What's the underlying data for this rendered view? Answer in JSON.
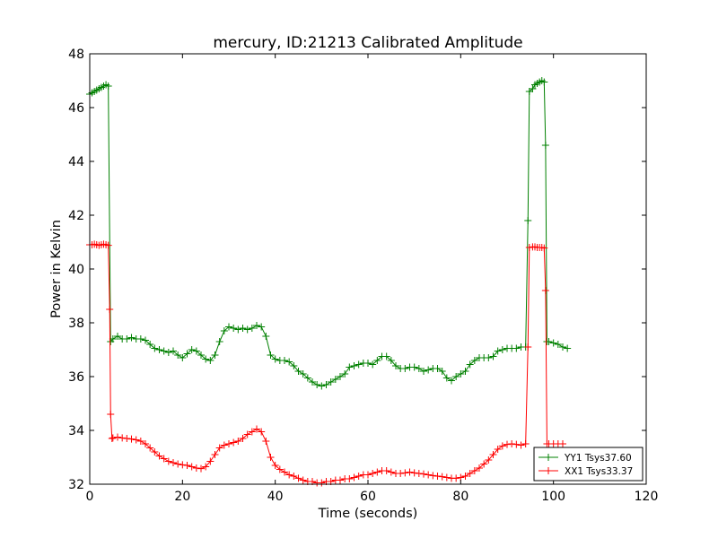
{
  "chart_data": {
    "type": "line",
    "title": "mercury, ID:21213 Calibrated Amplitude",
    "xlabel": "Time (seconds)",
    "ylabel": "Power in Kelvin",
    "xlim": [
      0,
      120
    ],
    "ylim": [
      32,
      48
    ],
    "xticks": [
      0,
      20,
      40,
      60,
      80,
      100,
      120
    ],
    "yticks": [
      32,
      34,
      36,
      38,
      40,
      42,
      44,
      46,
      48
    ],
    "grid": false,
    "marker": "plus",
    "legend_position": "lower-right",
    "series": [
      {
        "name": "YY1 Tsys37.60",
        "color": "#008000",
        "points": [
          [
            0,
            46.5
          ],
          [
            0.5,
            46.55
          ],
          [
            1,
            46.6
          ],
          [
            1.5,
            46.65
          ],
          [
            2,
            46.7
          ],
          [
            2.5,
            46.75
          ],
          [
            3,
            46.8
          ],
          [
            3.5,
            46.85
          ],
          [
            4,
            46.8
          ],
          [
            4.5,
            37.3
          ],
          [
            5,
            37.4
          ],
          [
            6,
            37.5
          ],
          [
            7,
            37.4
          ],
          [
            8,
            37.4
          ],
          [
            9,
            37.45
          ],
          [
            10,
            37.4
          ],
          [
            11,
            37.4
          ],
          [
            12,
            37.35
          ],
          [
            13,
            37.2
          ],
          [
            14,
            37.05
          ],
          [
            15,
            37.0
          ],
          [
            16,
            36.95
          ],
          [
            17,
            36.9
          ],
          [
            18,
            36.95
          ],
          [
            19,
            36.8
          ],
          [
            20,
            36.7
          ],
          [
            21,
            36.85
          ],
          [
            22,
            37.0
          ],
          [
            23,
            36.95
          ],
          [
            24,
            36.8
          ],
          [
            25,
            36.65
          ],
          [
            26,
            36.6
          ],
          [
            27,
            36.8
          ],
          [
            28,
            37.3
          ],
          [
            29,
            37.7
          ],
          [
            30,
            37.85
          ],
          [
            31,
            37.8
          ],
          [
            32,
            37.75
          ],
          [
            33,
            37.8
          ],
          [
            34,
            37.75
          ],
          [
            35,
            37.8
          ],
          [
            36,
            37.9
          ],
          [
            37,
            37.85
          ],
          [
            38,
            37.5
          ],
          [
            39,
            36.8
          ],
          [
            40,
            36.65
          ],
          [
            41,
            36.6
          ],
          [
            42,
            36.6
          ],
          [
            43,
            36.55
          ],
          [
            44,
            36.4
          ],
          [
            45,
            36.2
          ],
          [
            46,
            36.1
          ],
          [
            47,
            35.95
          ],
          [
            48,
            35.8
          ],
          [
            49,
            35.7
          ],
          [
            50,
            35.65
          ],
          [
            51,
            35.7
          ],
          [
            52,
            35.8
          ],
          [
            53,
            35.9
          ],
          [
            54,
            36.0
          ],
          [
            55,
            36.1
          ],
          [
            56,
            36.35
          ],
          [
            57,
            36.4
          ],
          [
            58,
            36.45
          ],
          [
            59,
            36.5
          ],
          [
            60,
            36.5
          ],
          [
            61,
            36.45
          ],
          [
            62,
            36.6
          ],
          [
            63,
            36.75
          ],
          [
            64,
            36.75
          ],
          [
            65,
            36.6
          ],
          [
            66,
            36.4
          ],
          [
            67,
            36.3
          ],
          [
            68,
            36.3
          ],
          [
            69,
            36.35
          ],
          [
            70,
            36.35
          ],
          [
            71,
            36.3
          ],
          [
            72,
            36.2
          ],
          [
            73,
            36.25
          ],
          [
            74,
            36.3
          ],
          [
            75,
            36.3
          ],
          [
            76,
            36.2
          ],
          [
            77,
            35.95
          ],
          [
            78,
            35.85
          ],
          [
            79,
            36.0
          ],
          [
            80,
            36.1
          ],
          [
            81,
            36.2
          ],
          [
            82,
            36.45
          ],
          [
            83,
            36.6
          ],
          [
            84,
            36.7
          ],
          [
            85,
            36.7
          ],
          [
            86,
            36.7
          ],
          [
            87,
            36.75
          ],
          [
            88,
            36.95
          ],
          [
            89,
            37.0
          ],
          [
            90,
            37.05
          ],
          [
            91,
            37.05
          ],
          [
            92,
            37.05
          ],
          [
            93,
            37.1
          ],
          [
            94,
            37.1
          ],
          [
            94.5,
            41.8
          ],
          [
            94.8,
            46.6
          ],
          [
            95.5,
            46.7
          ],
          [
            96,
            46.85
          ],
          [
            96.5,
            46.9
          ],
          [
            97,
            46.95
          ],
          [
            97.5,
            47.0
          ],
          [
            98,
            46.95
          ],
          [
            98.3,
            44.6
          ],
          [
            98.6,
            37.3
          ],
          [
            99,
            37.3
          ],
          [
            100,
            37.25
          ],
          [
            101,
            37.2
          ],
          [
            102,
            37.1
          ],
          [
            103,
            37.05
          ]
        ]
      },
      {
        "name": "XX1 Tsys33.37",
        "color": "#ff0000",
        "points": [
          [
            0,
            40.9
          ],
          [
            0.5,
            40.9
          ],
          [
            1,
            40.92
          ],
          [
            1.5,
            40.9
          ],
          [
            2,
            40.88
          ],
          [
            2.5,
            40.9
          ],
          [
            3,
            40.92
          ],
          [
            3.5,
            40.9
          ],
          [
            4,
            40.88
          ],
          [
            4.3,
            38.5
          ],
          [
            4.5,
            34.6
          ],
          [
            4.8,
            33.7
          ],
          [
            5,
            33.72
          ],
          [
            6,
            33.75
          ],
          [
            7,
            33.72
          ],
          [
            8,
            33.7
          ],
          [
            9,
            33.68
          ],
          [
            10,
            33.65
          ],
          [
            11,
            33.6
          ],
          [
            12,
            33.5
          ],
          [
            13,
            33.35
          ],
          [
            14,
            33.2
          ],
          [
            15,
            33.05
          ],
          [
            16,
            32.95
          ],
          [
            17,
            32.85
          ],
          [
            18,
            32.8
          ],
          [
            19,
            32.75
          ],
          [
            20,
            32.72
          ],
          [
            21,
            32.7
          ],
          [
            22,
            32.65
          ],
          [
            23,
            32.6
          ],
          [
            24,
            32.58
          ],
          [
            25,
            32.65
          ],
          [
            26,
            32.85
          ],
          [
            27,
            33.1
          ],
          [
            28,
            33.35
          ],
          [
            29,
            33.45
          ],
          [
            30,
            33.5
          ],
          [
            31,
            33.55
          ],
          [
            32,
            33.6
          ],
          [
            33,
            33.7
          ],
          [
            34,
            33.85
          ],
          [
            35,
            33.95
          ],
          [
            36,
            34.05
          ],
          [
            37,
            33.95
          ],
          [
            38,
            33.6
          ],
          [
            39,
            33.0
          ],
          [
            40,
            32.7
          ],
          [
            41,
            32.55
          ],
          [
            42,
            32.45
          ],
          [
            43,
            32.35
          ],
          [
            44,
            32.3
          ],
          [
            45,
            32.22
          ],
          [
            46,
            32.15
          ],
          [
            47,
            32.1
          ],
          [
            48,
            32.1
          ],
          [
            49,
            32.05
          ],
          [
            50,
            32.05
          ],
          [
            51,
            32.1
          ],
          [
            52,
            32.1
          ],
          [
            53,
            32.15
          ],
          [
            54,
            32.15
          ],
          [
            55,
            32.2
          ],
          [
            56,
            32.2
          ],
          [
            57,
            32.25
          ],
          [
            58,
            32.3
          ],
          [
            59,
            32.35
          ],
          [
            60,
            32.35
          ],
          [
            61,
            32.4
          ],
          [
            62,
            32.45
          ],
          [
            63,
            32.5
          ],
          [
            64,
            32.5
          ],
          [
            65,
            32.45
          ],
          [
            66,
            32.4
          ],
          [
            67,
            32.4
          ],
          [
            68,
            32.42
          ],
          [
            69,
            32.45
          ],
          [
            70,
            32.42
          ],
          [
            71,
            32.4
          ],
          [
            72,
            32.38
          ],
          [
            73,
            32.35
          ],
          [
            74,
            32.32
          ],
          [
            75,
            32.3
          ],
          [
            76,
            32.28
          ],
          [
            77,
            32.25
          ],
          [
            78,
            32.22
          ],
          [
            79,
            32.22
          ],
          [
            80,
            32.25
          ],
          [
            81,
            32.3
          ],
          [
            82,
            32.4
          ],
          [
            83,
            32.5
          ],
          [
            84,
            32.6
          ],
          [
            85,
            32.75
          ],
          [
            86,
            32.9
          ],
          [
            87,
            33.1
          ],
          [
            88,
            33.3
          ],
          [
            89,
            33.42
          ],
          [
            90,
            33.48
          ],
          [
            91,
            33.5
          ],
          [
            92,
            33.48
          ],
          [
            93,
            33.45
          ],
          [
            94,
            33.5
          ],
          [
            94.5,
            37.1
          ],
          [
            94.8,
            40.8
          ],
          [
            95.5,
            40.82
          ],
          [
            96,
            40.82
          ],
          [
            96.5,
            40.8
          ],
          [
            97,
            40.8
          ],
          [
            97.5,
            40.8
          ],
          [
            98,
            40.78
          ],
          [
            98.3,
            39.2
          ],
          [
            98.6,
            33.5
          ],
          [
            99,
            33.5
          ],
          [
            100,
            33.5
          ],
          [
            101,
            33.5
          ],
          [
            102,
            33.5
          ]
        ]
      }
    ]
  }
}
